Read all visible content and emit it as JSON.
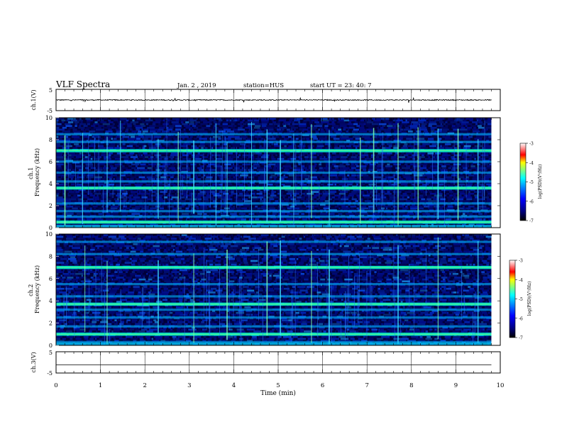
{
  "header": {
    "title": "VLF Spectra",
    "date": "Jan. 2 , 2019",
    "station": "station=HUS",
    "start": "start UT =  23: 40: 7"
  },
  "colors": {
    "spec_background": "#00003a",
    "colormap": [
      "#000000",
      "#00007f",
      "#0000ff",
      "#0080ff",
      "#00ffff",
      "#80ff80",
      "#ffff00",
      "#ff8000",
      "#ff0000",
      "#ffffff"
    ],
    "trace": "#000000"
  },
  "chart_data": [
    {
      "type": "line",
      "name": "ch1-waveform",
      "ylabel": "ch.1(V)",
      "ylim": [
        -5,
        5
      ],
      "yticks": [
        "5",
        "-5"
      ],
      "xlim": [
        0,
        10
      ],
      "baseline": 0,
      "amplitude": 0.25,
      "x_end": 9.8
    },
    {
      "type": "heatmap",
      "name": "ch1-spectrogram",
      "ylabel": "ch.1\nFrequency (kHz)",
      "ylim": [
        0,
        10
      ],
      "yticks": [
        "0",
        "2",
        "4",
        "6",
        "8",
        "10"
      ],
      "xlim": [
        0,
        10
      ],
      "x_end": 9.8,
      "horizontal_bands_khz": [
        0.5,
        1.0,
        1.5,
        2.2,
        3.6,
        4.2,
        5.0,
        6.0,
        7.0,
        7.8,
        8.5
      ],
      "strong_bands_khz": [
        0.5,
        3.6,
        7.0
      ],
      "vertical_spikes_min": [
        0.2,
        0.6,
        1.15,
        1.45,
        2.3,
        2.75,
        3.1,
        3.6,
        3.85,
        4.4,
        4.75,
        5.05,
        5.35,
        5.75,
        6.15,
        6.85,
        7.15,
        7.7,
        8.15,
        8.6,
        9.05,
        9.5
      ],
      "colorbar": {
        "label": "log(PSD)(V²/Hz)",
        "ticks": [
          "-3",
          "-4",
          "-5",
          "-6",
          "-7"
        ]
      }
    },
    {
      "type": "heatmap",
      "name": "ch2-spectrogram",
      "ylabel": "ch.2\nFrequency (kHz)",
      "ylim": [
        0,
        10
      ],
      "yticks": [
        "0",
        "2",
        "4",
        "6",
        "8",
        "10"
      ],
      "xlim": [
        0,
        10
      ],
      "x_end": 9.8,
      "horizontal_bands_khz": [
        0.3,
        1.0,
        1.7,
        2.5,
        3.2,
        3.7,
        4.4,
        5.5,
        7.0,
        8.2,
        9.3
      ],
      "strong_bands_khz": [
        1.0,
        3.7,
        7.0
      ],
      "vertical_spikes_min": [
        0.65,
        1.15,
        2.3,
        3.1,
        3.85,
        4.75,
        5.05,
        5.75,
        6.15,
        7.7,
        8.6,
        9.5
      ],
      "colorbar": {
        "label": "log(PSD)(V²/Hz)",
        "ticks": [
          "-3",
          "-4",
          "-5",
          "-6",
          "-7"
        ]
      }
    },
    {
      "type": "line",
      "name": "ch3-waveform",
      "ylabel": "ch.3(V)",
      "ylim": [
        -5,
        5
      ],
      "yticks": [
        "5",
        "-5"
      ],
      "xlim": [
        0,
        10
      ],
      "baseline": -1.2,
      "amplitude": 0,
      "x_end": 9.8,
      "xlabel": "Time (min)",
      "xticks": [
        "0",
        "1",
        "2",
        "3",
        "4",
        "5",
        "6",
        "7",
        "8",
        "9",
        "10"
      ]
    }
  ]
}
